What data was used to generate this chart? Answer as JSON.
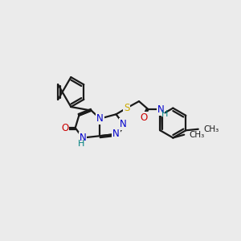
{
  "bg_color": "#ebebeb",
  "atom_colors": {
    "C": "#000000",
    "N": "#0000cc",
    "O": "#cc0000",
    "S": "#ccaa00",
    "H": "#008080"
  },
  "bond_color": "#1a1a1a",
  "line_width": 1.6,
  "font_size": 8.5
}
